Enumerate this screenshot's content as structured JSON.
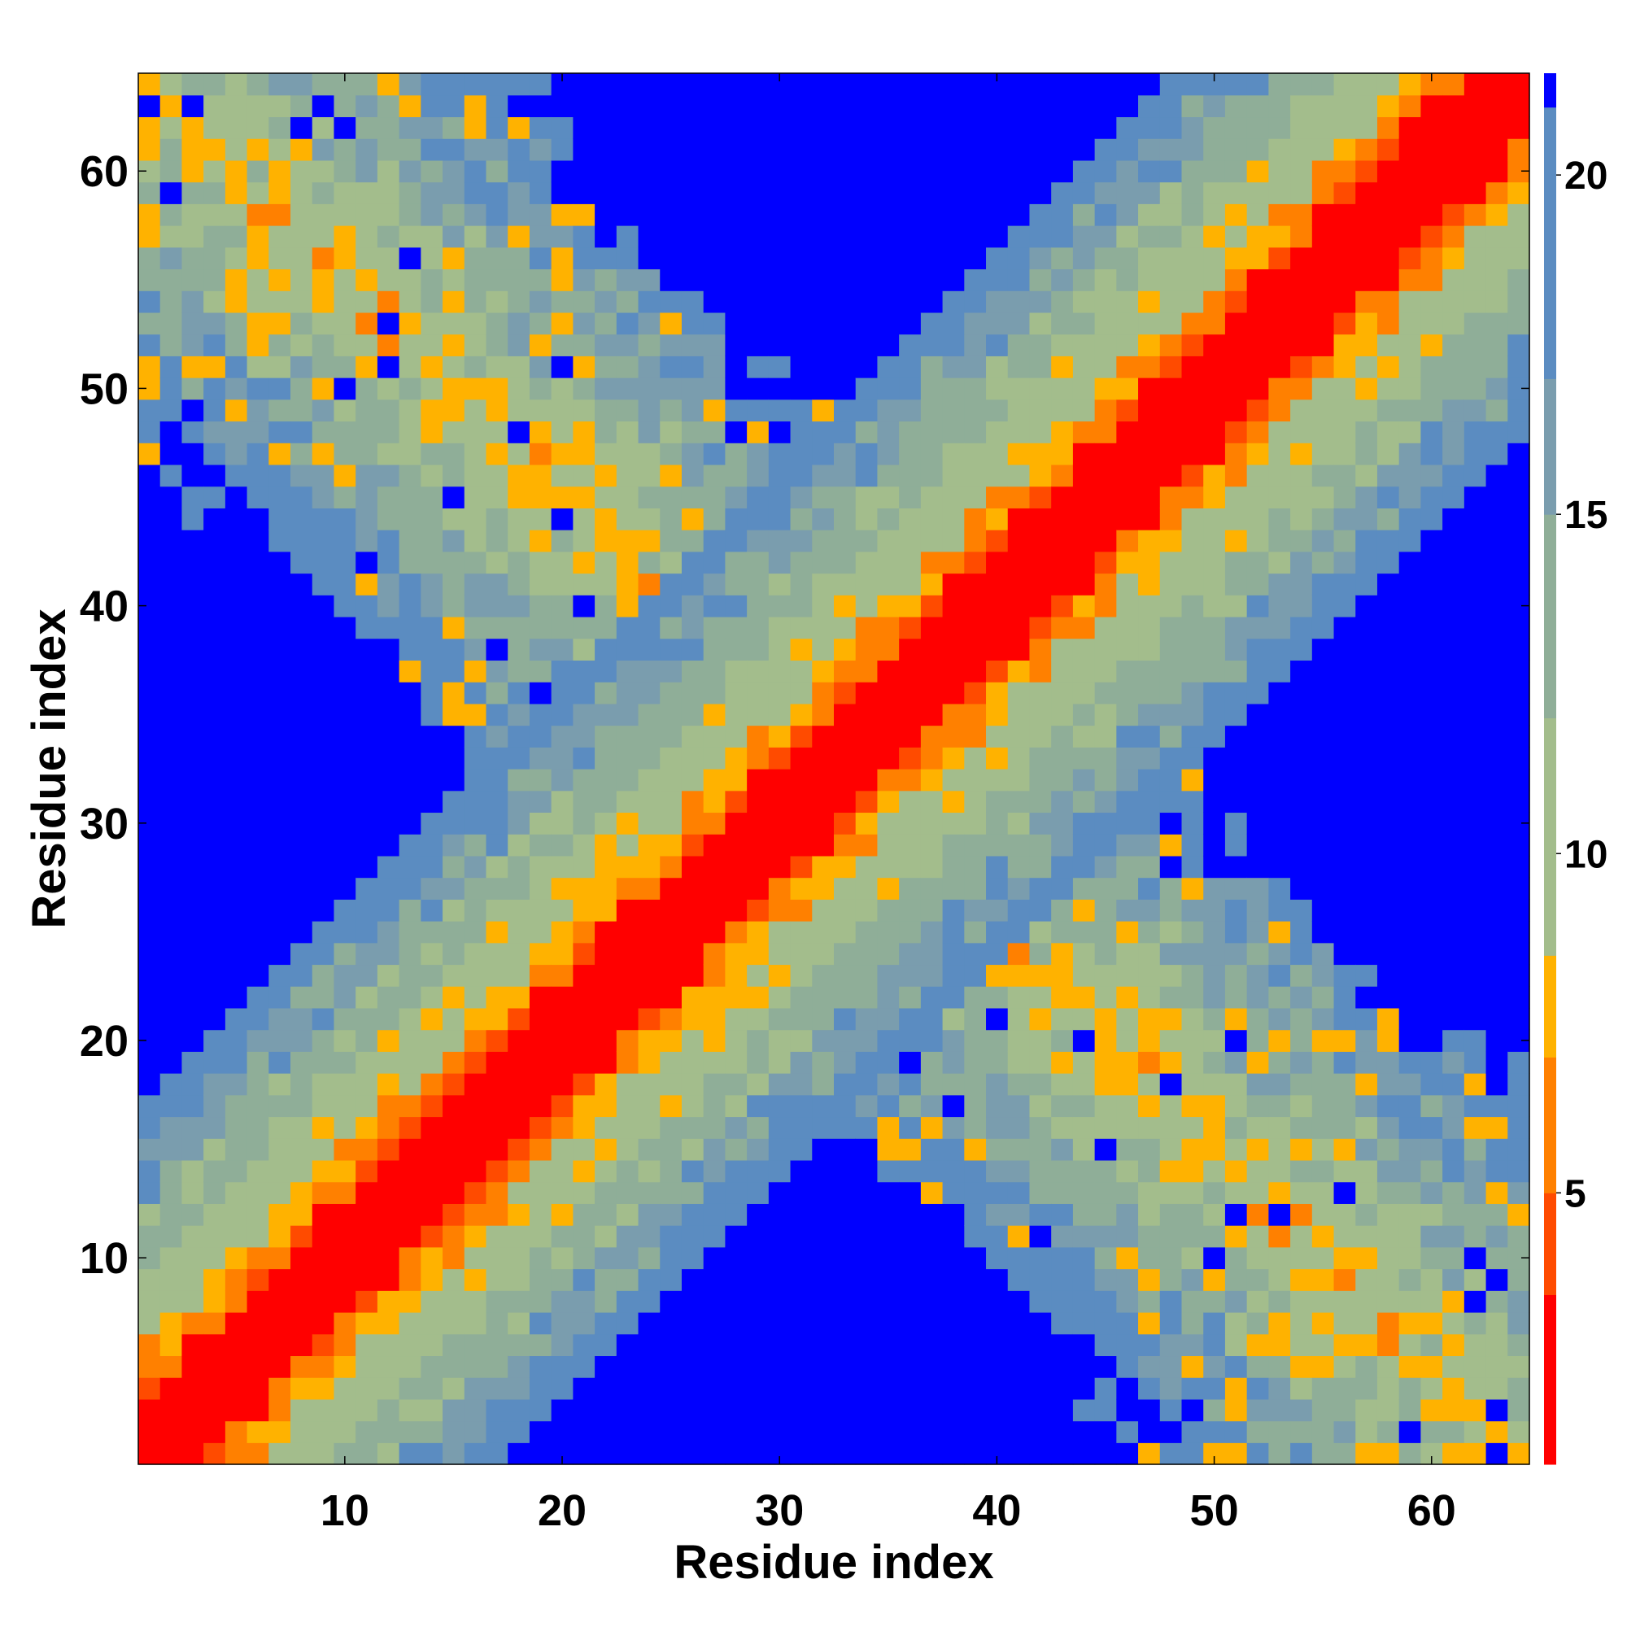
{
  "chart_data": {
    "type": "heatmap",
    "title": "",
    "xlabel": "Residue index",
    "ylabel": "Residue index",
    "grid": false,
    "n": 64,
    "xlim": [
      1,
      64
    ],
    "ylim": [
      1,
      64
    ],
    "x_ticks": [
      10,
      20,
      30,
      40,
      50,
      60
    ],
    "y_ticks": [
      10,
      20,
      30,
      40,
      50,
      60
    ],
    "colorbar": {
      "range": [
        1,
        21.5
      ],
      "ticks": [
        5,
        10,
        15,
        20
      ],
      "levels": [
        {
          "from": 1.0,
          "to": 3.5,
          "color": "#ff0000"
        },
        {
          "from": 3.5,
          "to": 5.0,
          "color": "#ff4b00"
        },
        {
          "from": 5.0,
          "to": 7.0,
          "color": "#ff8000"
        },
        {
          "from": 7.0,
          "to": 8.5,
          "color": "#ffb200"
        },
        {
          "from": 8.5,
          "to": 12.0,
          "color": "#a3bd8c"
        },
        {
          "from": 12.0,
          "to": 15.0,
          "color": "#8fae98"
        },
        {
          "from": 15.0,
          "to": 17.0,
          "color": "#7a9dae"
        },
        {
          "from": 17.0,
          "to": 21.0,
          "color": "#5b8cc1"
        },
        {
          "from": 21.0,
          "to": 21.5,
          "color": "#0000ff"
        }
      ]
    },
    "value_model": {
      "description_of_matrix": "symmetric distance map: near-diagonal band plus anti-diagonal contact arm",
      "diagonal_band": [
        {
          "max_offset": 2,
          "value": 2.0
        },
        {
          "max_offset": 3,
          "value": 4.5
        },
        {
          "max_offset": 4,
          "value": 6.5
        },
        {
          "max_offset": 5,
          "value": 8.0
        },
        {
          "max_offset": 8,
          "value": 10.0
        },
        {
          "max_offset": 11,
          "value": 13.0
        },
        {
          "max_offset": 14,
          "value": 16.0
        },
        {
          "max_offset": 16,
          "value": 19.0
        }
      ],
      "antidiagonal_sum": 65,
      "background_value": 21.5
    }
  }
}
